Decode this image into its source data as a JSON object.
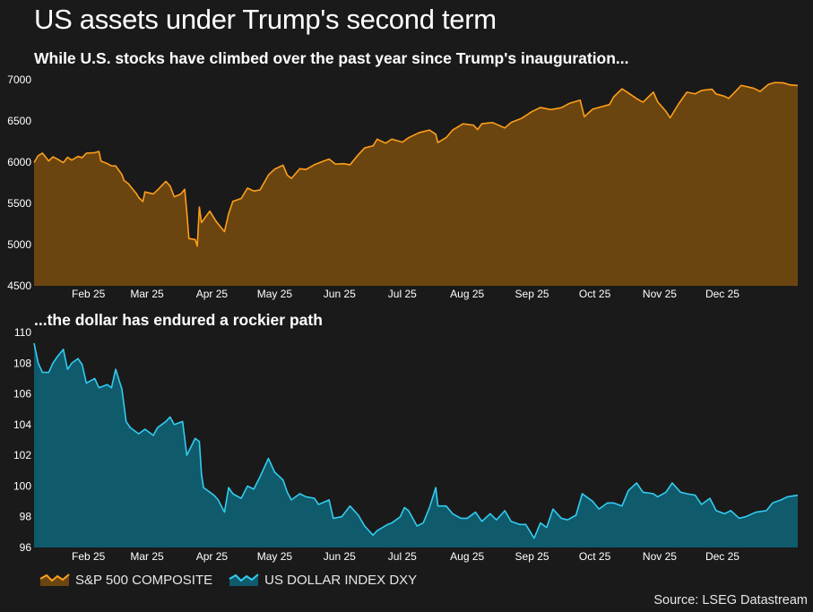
{
  "title": "US assets under Trump's second term",
  "source": "Source: LSEG Datastream",
  "colors": {
    "background": "#1a1a1a",
    "sp500_line": "#ff9f1a",
    "sp500_fill": "#6b4510",
    "dxy_line": "#33ccf0",
    "dxy_fill": "#0f5a6b"
  },
  "legend": [
    {
      "label": "S&P 500 COMPOSITE",
      "series": "sp500"
    },
    {
      "label": "US DOLLAR INDEX DXY",
      "series": "dxy"
    }
  ],
  "chart_data": [
    {
      "id": "sp500",
      "type": "area",
      "title": "While U.S. stocks have climbed over the past year since Trump's inauguration...",
      "series_name": "S&P 500 COMPOSITE",
      "ylim": [
        4500,
        7000
      ],
      "yticks": [
        4500,
        5000,
        5500,
        6000,
        6500,
        7000
      ],
      "xlim": [
        "2025-01-20",
        "2026-01-20"
      ],
      "xticks": [
        {
          "label": "Feb 25",
          "date": "2025-02-15"
        },
        {
          "label": "Mar 25",
          "date": "2025-03-15"
        },
        {
          "label": "Apr 25",
          "date": "2025-04-15"
        },
        {
          "label": "May 25",
          "date": "2025-05-15"
        },
        {
          "label": "Jun 25",
          "date": "2025-06-15"
        },
        {
          "label": "Jul 25",
          "date": "2025-07-15"
        },
        {
          "label": "Aug 25",
          "date": "2025-08-15"
        },
        {
          "label": "Sep 25",
          "date": "2025-09-15"
        },
        {
          "label": "Oct 25",
          "date": "2025-10-15"
        },
        {
          "label": "Nov 25",
          "date": "2025-11-15"
        },
        {
          "label": "Dec 25",
          "date": "2025-12-15"
        }
      ],
      "points": [
        [
          "2025-01-20",
          5996
        ],
        [
          "2025-01-22",
          6080
        ],
        [
          "2025-01-24",
          6110
        ],
        [
          "2025-01-27",
          6015
        ],
        [
          "2025-01-29",
          6065
        ],
        [
          "2025-01-31",
          6040
        ],
        [
          "2025-02-03",
          5995
        ],
        [
          "2025-02-05",
          6060
        ],
        [
          "2025-02-07",
          6025
        ],
        [
          "2025-02-10",
          6070
        ],
        [
          "2025-02-12",
          6055
        ],
        [
          "2025-02-14",
          6110
        ],
        [
          "2025-02-18",
          6115
        ],
        [
          "2025-02-20",
          6130
        ],
        [
          "2025-02-21",
          6013
        ],
        [
          "2025-02-24",
          5983
        ],
        [
          "2025-02-26",
          5956
        ],
        [
          "2025-02-28",
          5955
        ],
        [
          "2025-03-03",
          5850
        ],
        [
          "2025-03-04",
          5778
        ],
        [
          "2025-03-06",
          5740
        ],
        [
          "2025-03-10",
          5615
        ],
        [
          "2025-03-11",
          5572
        ],
        [
          "2025-03-13",
          5522
        ],
        [
          "2025-03-14",
          5639
        ],
        [
          "2025-03-18",
          5615
        ],
        [
          "2025-03-20",
          5662
        ],
        [
          "2025-03-24",
          5767
        ],
        [
          "2025-03-26",
          5712
        ],
        [
          "2025-03-28",
          5580
        ],
        [
          "2025-03-31",
          5611
        ],
        [
          "2025-04-02",
          5671
        ],
        [
          "2025-04-03",
          5396
        ],
        [
          "2025-04-04",
          5074
        ],
        [
          "2025-04-07",
          5062
        ],
        [
          "2025-04-08",
          4982
        ],
        [
          "2025-04-09",
          5456
        ],
        [
          "2025-04-10",
          5268
        ],
        [
          "2025-04-14",
          5406
        ],
        [
          "2025-04-17",
          5282
        ],
        [
          "2025-04-21",
          5158
        ],
        [
          "2025-04-23",
          5375
        ],
        [
          "2025-04-25",
          5525
        ],
        [
          "2025-04-29",
          5560
        ],
        [
          "2025-05-02",
          5686
        ],
        [
          "2025-05-05",
          5650
        ],
        [
          "2025-05-08",
          5663
        ],
        [
          "2025-05-12",
          5844
        ],
        [
          "2025-05-15",
          5916
        ],
        [
          "2025-05-19",
          5964
        ],
        [
          "2025-05-21",
          5844
        ],
        [
          "2025-05-23",
          5803
        ],
        [
          "2025-05-27",
          5921
        ],
        [
          "2025-05-30",
          5912
        ],
        [
          "2025-06-03",
          5970
        ],
        [
          "2025-06-06",
          6000
        ],
        [
          "2025-06-10",
          6038
        ],
        [
          "2025-06-13",
          5977
        ],
        [
          "2025-06-17",
          5982
        ],
        [
          "2025-06-20",
          5968
        ],
        [
          "2025-06-24",
          6092
        ],
        [
          "2025-06-27",
          6173
        ],
        [
          "2025-07-01",
          6198
        ],
        [
          "2025-07-03",
          6279
        ],
        [
          "2025-07-07",
          6230
        ],
        [
          "2025-07-10",
          6280
        ],
        [
          "2025-07-15",
          6243
        ],
        [
          "2025-07-18",
          6297
        ],
        [
          "2025-07-23",
          6358
        ],
        [
          "2025-07-28",
          6390
        ],
        [
          "2025-07-31",
          6339
        ],
        [
          "2025-08-01",
          6238
        ],
        [
          "2025-08-05",
          6299
        ],
        [
          "2025-08-08",
          6389
        ],
        [
          "2025-08-13",
          6466
        ],
        [
          "2025-08-18",
          6449
        ],
        [
          "2025-08-20",
          6396
        ],
        [
          "2025-08-22",
          6467
        ],
        [
          "2025-08-27",
          6481
        ],
        [
          "2025-08-29",
          6460
        ],
        [
          "2025-09-02",
          6415
        ],
        [
          "2025-09-05",
          6482
        ],
        [
          "2025-09-10",
          6532
        ],
        [
          "2025-09-15",
          6615
        ],
        [
          "2025-09-19",
          6664
        ],
        [
          "2025-09-24",
          6638
        ],
        [
          "2025-09-29",
          6661
        ],
        [
          "2025-10-03",
          6715
        ],
        [
          "2025-10-08",
          6753
        ],
        [
          "2025-10-10",
          6552
        ],
        [
          "2025-10-14",
          6644
        ],
        [
          "2025-10-17",
          6664
        ],
        [
          "2025-10-22",
          6699
        ],
        [
          "2025-10-24",
          6791
        ],
        [
          "2025-10-28",
          6890
        ],
        [
          "2025-10-31",
          6840
        ],
        [
          "2025-11-04",
          6771
        ],
        [
          "2025-11-07",
          6728
        ],
        [
          "2025-11-12",
          6850
        ],
        [
          "2025-11-14",
          6734
        ],
        [
          "2025-11-18",
          6617
        ],
        [
          "2025-11-20",
          6538
        ],
        [
          "2025-11-24",
          6705
        ],
        [
          "2025-11-28",
          6849
        ],
        [
          "2025-12-02",
          6829
        ],
        [
          "2025-12-05",
          6870
        ],
        [
          "2025-12-10",
          6886
        ],
        [
          "2025-12-12",
          6827
        ],
        [
          "2025-12-16",
          6800
        ],
        [
          "2025-12-18",
          6774
        ],
        [
          "2025-12-22",
          6878
        ],
        [
          "2025-12-24",
          6932
        ],
        [
          "2025-12-30",
          6896
        ],
        [
          "2026-01-02",
          6858
        ],
        [
          "2026-01-06",
          6944
        ],
        [
          "2026-01-09",
          6966
        ],
        [
          "2026-01-13",
          6963
        ],
        [
          "2026-01-16",
          6940
        ],
        [
          "2026-01-20",
          6930
        ]
      ]
    },
    {
      "id": "dxy",
      "type": "area",
      "title": "...the dollar has endured a rockier path",
      "series_name": "US DOLLAR INDEX DXY",
      "ylim": [
        96,
        110
      ],
      "yticks": [
        96,
        98,
        100,
        102,
        104,
        106,
        108,
        110
      ],
      "xlim": [
        "2025-01-20",
        "2026-01-20"
      ],
      "xticks": [
        {
          "label": "Feb 25",
          "date": "2025-02-15"
        },
        {
          "label": "Mar 25",
          "date": "2025-03-15"
        },
        {
          "label": "Apr 25",
          "date": "2025-04-15"
        },
        {
          "label": "May 25",
          "date": "2025-05-15"
        },
        {
          "label": "Jun 25",
          "date": "2025-06-15"
        },
        {
          "label": "Jul 25",
          "date": "2025-07-15"
        },
        {
          "label": "Aug 25",
          "date": "2025-08-15"
        },
        {
          "label": "Sep 25",
          "date": "2025-09-15"
        },
        {
          "label": "Oct 25",
          "date": "2025-10-15"
        },
        {
          "label": "Nov 25",
          "date": "2025-11-15"
        },
        {
          "label": "Dec 25",
          "date": "2025-12-15"
        }
      ],
      "points": [
        [
          "2025-01-20",
          109.3
        ],
        [
          "2025-01-22",
          108.0
        ],
        [
          "2025-01-24",
          107.4
        ],
        [
          "2025-01-27",
          107.4
        ],
        [
          "2025-01-29",
          108.0
        ],
        [
          "2025-01-31",
          108.4
        ],
        [
          "2025-02-03",
          108.9
        ],
        [
          "2025-02-05",
          107.6
        ],
        [
          "2025-02-07",
          108.0
        ],
        [
          "2025-02-10",
          108.3
        ],
        [
          "2025-02-12",
          107.9
        ],
        [
          "2025-02-14",
          106.7
        ],
        [
          "2025-02-18",
          107.0
        ],
        [
          "2025-02-20",
          106.4
        ],
        [
          "2025-02-24",
          106.6
        ],
        [
          "2025-02-26",
          106.4
        ],
        [
          "2025-02-28",
          107.6
        ],
        [
          "2025-03-03",
          106.3
        ],
        [
          "2025-03-05",
          104.2
        ],
        [
          "2025-03-07",
          103.8
        ],
        [
          "2025-03-11",
          103.4
        ],
        [
          "2025-03-14",
          103.7
        ],
        [
          "2025-03-18",
          103.3
        ],
        [
          "2025-03-20",
          103.8
        ],
        [
          "2025-03-24",
          104.2
        ],
        [
          "2025-03-26",
          104.5
        ],
        [
          "2025-03-28",
          104.0
        ],
        [
          "2025-04-01",
          104.2
        ],
        [
          "2025-04-03",
          102.0
        ],
        [
          "2025-04-07",
          103.1
        ],
        [
          "2025-04-09",
          102.9
        ],
        [
          "2025-04-10",
          100.8
        ],
        [
          "2025-04-11",
          99.9
        ],
        [
          "2025-04-14",
          99.6
        ],
        [
          "2025-04-16",
          99.4
        ],
        [
          "2025-04-18",
          99.1
        ],
        [
          "2025-04-21",
          98.3
        ],
        [
          "2025-04-23",
          99.9
        ],
        [
          "2025-04-25",
          99.5
        ],
        [
          "2025-04-29",
          99.2
        ],
        [
          "2025-05-02",
          100.0
        ],
        [
          "2025-05-05",
          99.8
        ],
        [
          "2025-05-08",
          100.6
        ],
        [
          "2025-05-12",
          101.8
        ],
        [
          "2025-05-15",
          100.9
        ],
        [
          "2025-05-19",
          100.4
        ],
        [
          "2025-05-21",
          99.6
        ],
        [
          "2025-05-23",
          99.1
        ],
        [
          "2025-05-27",
          99.5
        ],
        [
          "2025-05-30",
          99.3
        ],
        [
          "2025-06-03",
          99.2
        ],
        [
          "2025-06-05",
          98.8
        ],
        [
          "2025-06-10",
          99.1
        ],
        [
          "2025-06-12",
          97.9
        ],
        [
          "2025-06-16",
          98.0
        ],
        [
          "2025-06-20",
          98.7
        ],
        [
          "2025-06-24",
          98.1
        ],
        [
          "2025-06-27",
          97.4
        ],
        [
          "2025-07-01",
          96.8
        ],
        [
          "2025-07-03",
          97.1
        ],
        [
          "2025-07-08",
          97.5
        ],
        [
          "2025-07-10",
          97.6
        ],
        [
          "2025-07-14",
          98.0
        ],
        [
          "2025-07-16",
          98.6
        ],
        [
          "2025-07-18",
          98.4
        ],
        [
          "2025-07-22",
          97.4
        ],
        [
          "2025-07-25",
          97.6
        ],
        [
          "2025-07-28",
          98.6
        ],
        [
          "2025-07-31",
          99.9
        ],
        [
          "2025-08-01",
          98.7
        ],
        [
          "2025-08-05",
          98.7
        ],
        [
          "2025-08-08",
          98.2
        ],
        [
          "2025-08-12",
          97.9
        ],
        [
          "2025-08-15",
          97.9
        ],
        [
          "2025-08-19",
          98.3
        ],
        [
          "2025-08-22",
          97.7
        ],
        [
          "2025-08-26",
          98.2
        ],
        [
          "2025-08-29",
          97.8
        ],
        [
          "2025-09-02",
          98.4
        ],
        [
          "2025-09-05",
          97.7
        ],
        [
          "2025-09-09",
          97.5
        ],
        [
          "2025-09-12",
          97.5
        ],
        [
          "2025-09-16",
          96.6
        ],
        [
          "2025-09-19",
          97.6
        ],
        [
          "2025-09-22",
          97.3
        ],
        [
          "2025-09-25",
          98.5
        ],
        [
          "2025-09-29",
          97.9
        ],
        [
          "2025-10-02",
          97.8
        ],
        [
          "2025-10-06",
          98.1
        ],
        [
          "2025-10-09",
          99.5
        ],
        [
          "2025-10-14",
          99.0
        ],
        [
          "2025-10-17",
          98.5
        ],
        [
          "2025-10-21",
          98.9
        ],
        [
          "2025-10-24",
          98.9
        ],
        [
          "2025-10-28",
          98.7
        ],
        [
          "2025-10-31",
          99.7
        ],
        [
          "2025-11-04",
          100.2
        ],
        [
          "2025-11-07",
          99.6
        ],
        [
          "2025-11-12",
          99.5
        ],
        [
          "2025-11-14",
          99.3
        ],
        [
          "2025-11-18",
          99.6
        ],
        [
          "2025-11-21",
          100.2
        ],
        [
          "2025-11-25",
          99.6
        ],
        [
          "2025-11-28",
          99.5
        ],
        [
          "2025-12-02",
          99.4
        ],
        [
          "2025-12-05",
          98.8
        ],
        [
          "2025-12-09",
          99.2
        ],
        [
          "2025-12-12",
          98.4
        ],
        [
          "2025-12-16",
          98.2
        ],
        [
          "2025-12-19",
          98.4
        ],
        [
          "2025-12-23",
          97.9
        ],
        [
          "2025-12-26",
          98.0
        ],
        [
          "2025-12-31",
          98.3
        ],
        [
          "2026-01-05",
          98.4
        ],
        [
          "2026-01-08",
          98.9
        ],
        [
          "2026-01-12",
          99.1
        ],
        [
          "2026-01-15",
          99.3
        ],
        [
          "2026-01-20",
          99.4
        ]
      ]
    }
  ]
}
